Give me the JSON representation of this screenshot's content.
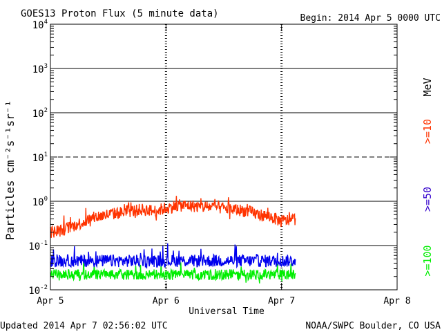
{
  "chart_data": {
    "type": "line",
    "title": "GOES13 Proton Flux (5 minute data)",
    "begin_label": "Begin: 2014 Apr 5 0000 UTC",
    "xlabel": "Universal Time",
    "ylabel": "Particles cm⁻²s⁻¹sr⁻¹",
    "y_scale": "log",
    "ylim": [
      0.01,
      10000
    ],
    "y_ticks": [
      {
        "value": 10000,
        "base": "10",
        "exp": "4"
      },
      {
        "value": 1000,
        "base": "10",
        "exp": "3"
      },
      {
        "value": 100,
        "base": "10",
        "exp": "2"
      },
      {
        "value": 10,
        "base": "10",
        "exp": "1"
      },
      {
        "value": 1,
        "base": "10",
        "exp": "0"
      },
      {
        "value": 0.1,
        "base": "10",
        "exp": "-1"
      },
      {
        "value": 0.01,
        "base": "10",
        "exp": "-2"
      }
    ],
    "xlim_days": [
      0,
      3
    ],
    "x_ticks": [
      {
        "value": 0,
        "label": "Apr 5"
      },
      {
        "value": 1,
        "label": "Apr 6"
      },
      {
        "value": 2,
        "label": "Apr 7"
      },
      {
        "value": 3,
        "label": "Apr 8"
      }
    ],
    "gridlines": [
      {
        "value": 1000,
        "style": "solid"
      },
      {
        "value": 100,
        "style": "solid"
      },
      {
        "value": 10,
        "style": "dashed"
      },
      {
        "value": 1,
        "style": "solid"
      },
      {
        "value": 0.1,
        "style": "solid"
      }
    ],
    "data_end_day": 2.12,
    "unit_label": "MeV",
    "series": [
      {
        "name": ">=10",
        "color": "#ff3300",
        "x_days": [
          0,
          0.1,
          0.2,
          0.3,
          0.4,
          0.5,
          0.6,
          0.7,
          0.8,
          0.9,
          1.0,
          1.1,
          1.2,
          1.3,
          1.4,
          1.5,
          1.6,
          1.7,
          1.8,
          1.9,
          2.0,
          2.12
        ],
        "values": [
          0.2,
          0.22,
          0.28,
          0.35,
          0.45,
          0.5,
          0.55,
          0.6,
          0.65,
          0.6,
          0.7,
          0.8,
          0.8,
          0.75,
          0.75,
          0.7,
          0.65,
          0.6,
          0.5,
          0.45,
          0.35,
          0.4
        ],
        "noise_dex": 0.14
      },
      {
        "name": ">=50",
        "color": "#0000ee",
        "x_days": [
          0,
          0.5,
          1.0,
          1.5,
          2.0,
          2.12
        ],
        "values": [
          0.045,
          0.045,
          0.045,
          0.045,
          0.045,
          0.045
        ],
        "noise_dex": 0.14
      },
      {
        "name": ">=100",
        "color": "#00ee00",
        "x_days": [
          0,
          0.5,
          1.0,
          1.5,
          2.0,
          2.12
        ],
        "values": [
          0.022,
          0.022,
          0.022,
          0.022,
          0.022,
          0.022
        ],
        "noise_dex": 0.12
      }
    ]
  },
  "footer": {
    "updated": "Updated 2014 Apr  7 02:56:02 UTC",
    "source": "NOAA/SWPC Boulder, CO USA"
  }
}
